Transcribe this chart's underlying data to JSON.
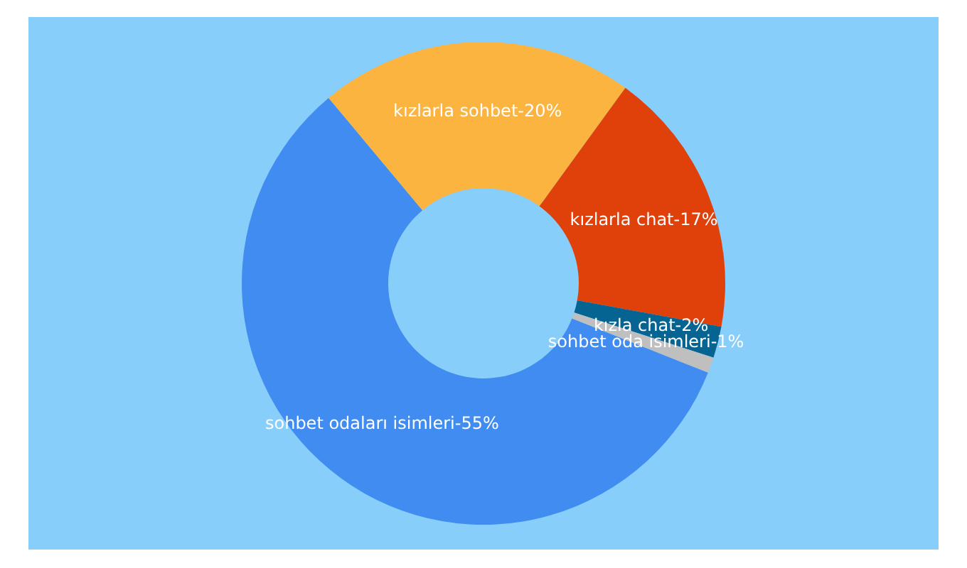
{
  "chart_data": {
    "type": "donut",
    "categories": [
      "sohbet odaları isimleri",
      "kızlarla sohbet",
      "kızlarla chat",
      "kızla chat",
      "sohbet oda isimleri"
    ],
    "values": [
      55,
      20,
      17,
      2,
      1
    ],
    "colors": [
      "#418cf0",
      "#fcb441",
      "#e0400a",
      "#056492",
      "#bfbfbf"
    ],
    "value_labels": [
      "55%",
      "20%",
      "17%",
      "2%",
      "1%"
    ]
  }
}
